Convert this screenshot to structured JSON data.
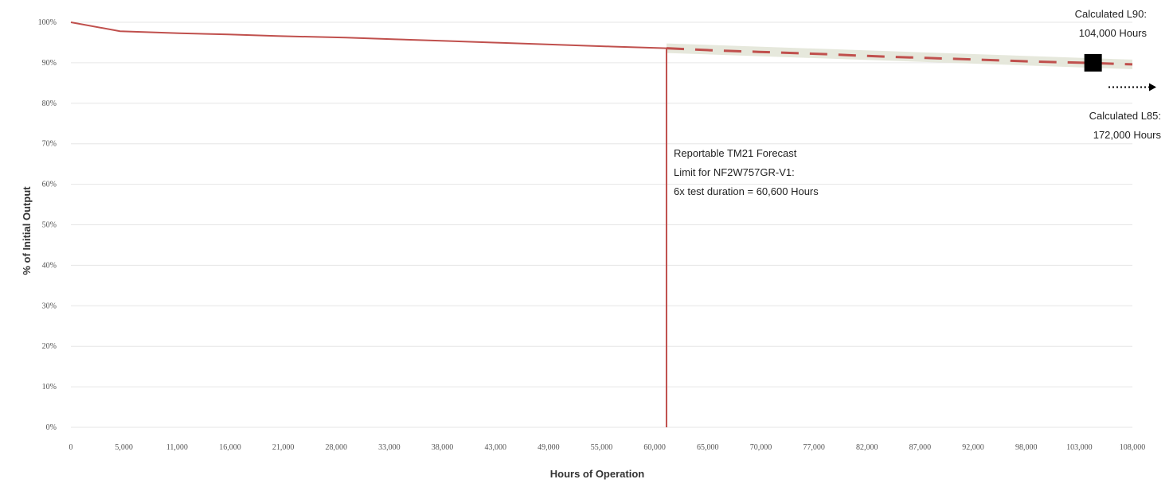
{
  "chart_data": {
    "type": "line",
    "title": "",
    "xlabel": "Hours of Operation",
    "ylabel": "% of Initial Output",
    "x_ticks": [
      "0",
      "5,000",
      "11,000",
      "16,000",
      "21,000",
      "28,000",
      "33,000",
      "38,000",
      "43,000",
      "49,000",
      "55,000",
      "60,000",
      "65,000",
      "70,000",
      "77,000",
      "82,000",
      "87,000",
      "92,000",
      "98,000",
      "103,000",
      "108,000"
    ],
    "y_ticks": [
      "0%",
      "10%",
      "20%",
      "30%",
      "40%",
      "50%",
      "60%",
      "70%",
      "80%",
      "90%",
      "100%"
    ],
    "xlim": [
      0,
      108000
    ],
    "ylim": [
      0,
      100
    ],
    "grid": "horizontal",
    "series": [
      {
        "style": "solid",
        "color": "#c0504d",
        "points": [
          [
            0,
            100
          ],
          [
            5000,
            97.8
          ],
          [
            11000,
            97.3
          ],
          [
            16000,
            97.0
          ],
          [
            21000,
            96.6
          ],
          [
            28000,
            96.2
          ],
          [
            33000,
            95.8
          ],
          [
            38000,
            95.4
          ],
          [
            43000,
            95.0
          ],
          [
            49000,
            94.5
          ],
          [
            55000,
            94.0
          ],
          [
            60600,
            93.6
          ]
        ]
      },
      {
        "style": "dashed",
        "color": "#c0504d",
        "points": [
          [
            60600,
            93.6
          ],
          [
            65000,
            93.1
          ],
          [
            70000,
            92.7
          ],
          [
            77000,
            92.1
          ],
          [
            82000,
            91.6
          ],
          [
            87000,
            91.2
          ],
          [
            92000,
            90.8
          ],
          [
            98000,
            90.3
          ],
          [
            103000,
            90.0
          ],
          [
            108000,
            89.6
          ]
        ]
      }
    ],
    "band": {
      "color": "#e3e6d8",
      "points": [
        [
          60600,
          93.6
        ],
        [
          108000,
          89.6
        ]
      ]
    },
    "vertical_line": {
      "x": 60600,
      "color": "#c0504d"
    },
    "marker": {
      "x": 104000,
      "y": 90,
      "shape": "square",
      "color": "#000000"
    },
    "arrow": {
      "y": 84,
      "style": "dotted",
      "direction": "right",
      "color": "#000000"
    },
    "annotations": {
      "tm21_lines": [
        "Reportable TM21 Forecast",
        "Limit for NF2W757GR-V1:",
        "6x test duration = 60,600 Hours"
      ],
      "l90_lines": [
        "Calculated L90:",
        "104,000 Hours"
      ],
      "l85_lines": [
        "Calculated L85:",
        "172,000 Hours"
      ]
    }
  }
}
